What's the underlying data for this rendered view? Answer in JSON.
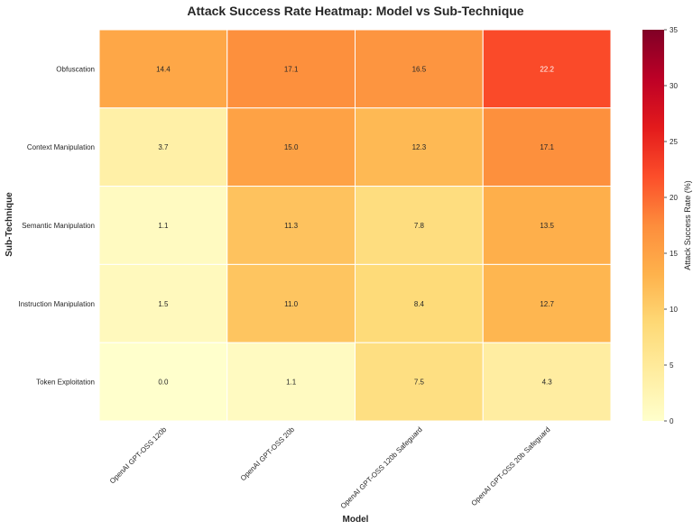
{
  "chart_data": {
    "type": "heatmap",
    "title": "Attack Success Rate Heatmap: Model vs Sub-Technique",
    "xlabel": "Model",
    "ylabel": "Sub-Technique",
    "x_categories": [
      "OpenAI GPT-OSS 120b",
      "OpenAI GPT-OSS 20b",
      "OpenAI GPT-OSS 120b Safeguard",
      "OpenAI GPT-OSS 20b Safeguard"
    ],
    "y_categories": [
      "Obfuscation",
      "Context Manipulation",
      "Semantic Manipulation",
      "Instruction Manipulation",
      "Token Exploitation"
    ],
    "values": [
      [
        14.4,
        17.1,
        16.5,
        22.2
      ],
      [
        3.7,
        15.0,
        12.3,
        17.1
      ],
      [
        1.1,
        11.3,
        7.8,
        13.5
      ],
      [
        1.5,
        11.0,
        8.4,
        12.7
      ],
      [
        0.0,
        1.1,
        7.5,
        4.3
      ]
    ],
    "value_labels": [
      [
        "14.4",
        "17.1",
        "16.5",
        "22.2"
      ],
      [
        "3.7",
        "15.0",
        "12.3",
        "17.1"
      ],
      [
        "1.1",
        "11.3",
        "7.8",
        "13.5"
      ],
      [
        "1.5",
        "11.0",
        "8.4",
        "12.7"
      ],
      [
        "0.0",
        "1.1",
        "7.5",
        "4.3"
      ]
    ],
    "colorbar": {
      "label": "Attack Success Rate (%)",
      "range": [
        0,
        35
      ],
      "ticks": [
        0,
        5,
        10,
        15,
        20,
        25,
        30,
        35
      ],
      "colormap": "YlOrRd"
    }
  }
}
